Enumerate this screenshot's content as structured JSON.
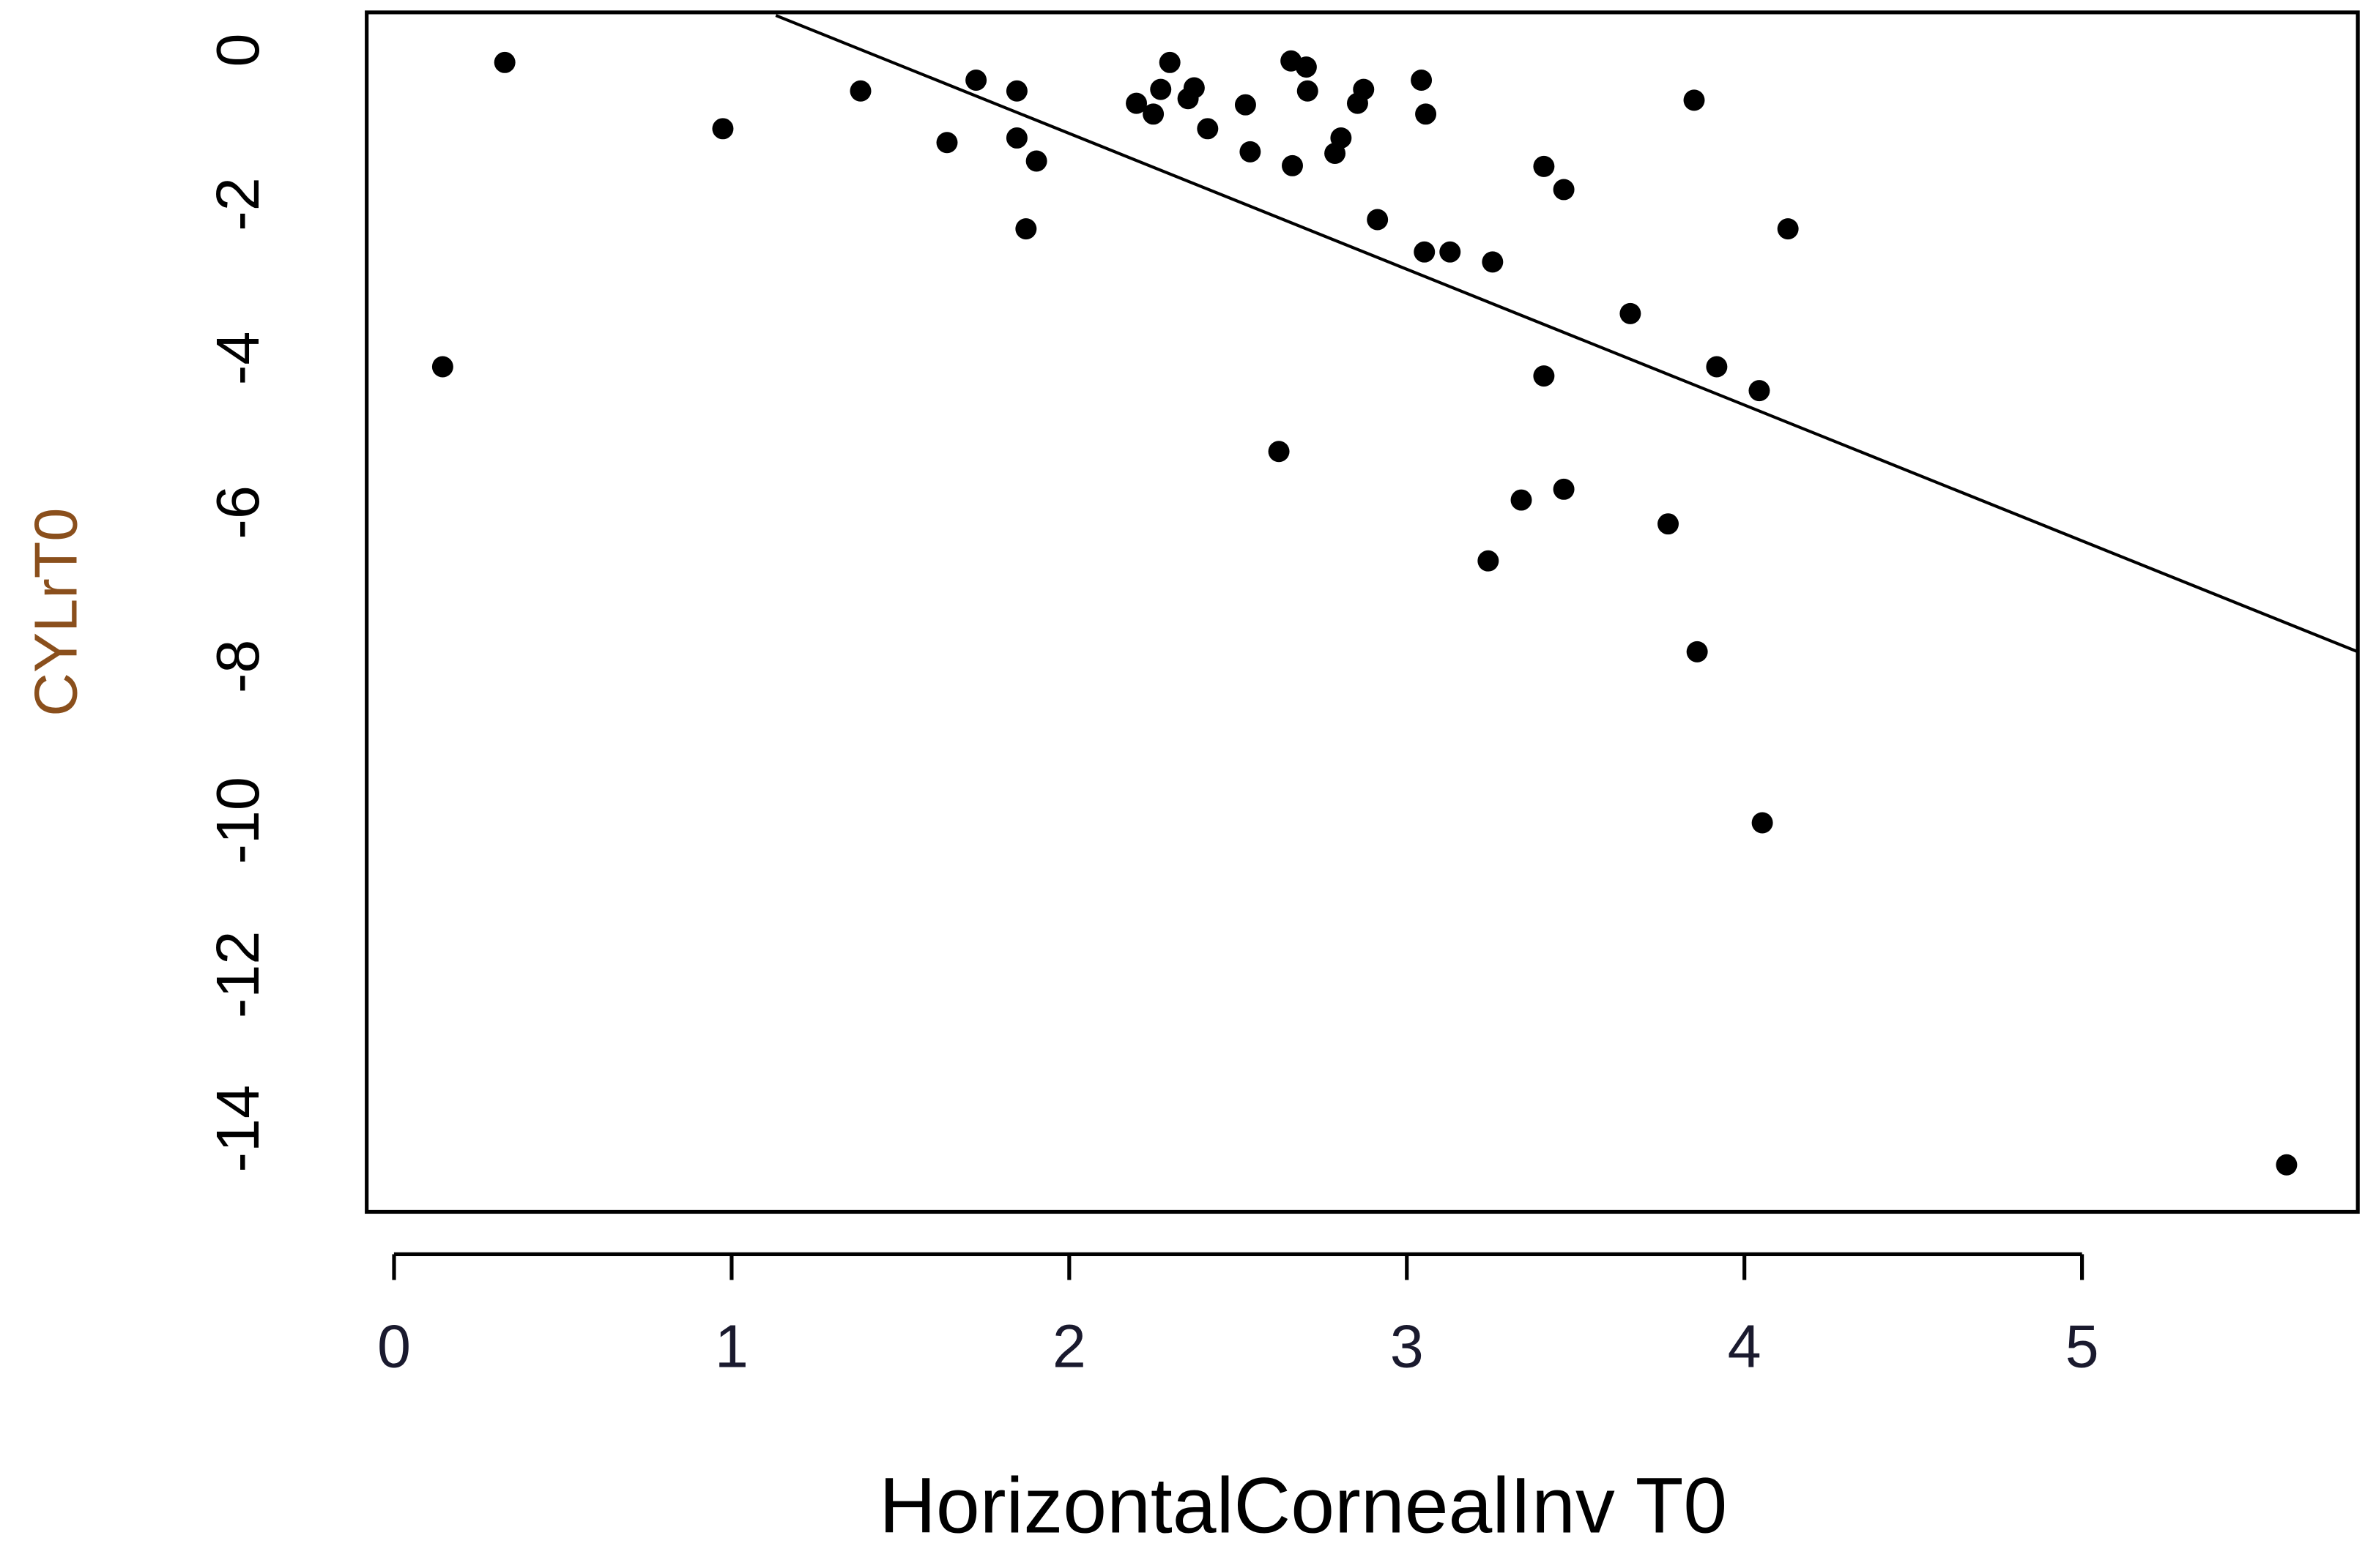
{
  "chart_data": {
    "type": "scatter",
    "x_label": "HorizontalCornealInv T0",
    "y_label": "CYLrT0",
    "color": "#000000",
    "y_label_color": "#8a4f1c",
    "x": [
      0.144,
      0.328,
      0.974,
      1.382,
      1.638,
      1.724,
      1.845,
      1.845,
      1.903,
      1.872,
      2.199,
      2.249,
      2.271,
      2.298,
      2.352,
      2.37,
      2.41,
      2.522,
      2.536,
      2.621,
      2.657,
      2.661,
      2.702,
      2.706,
      2.787,
      2.805,
      2.854,
      2.872,
      2.913,
      3.043,
      3.056,
      3.052,
      3.128,
      3.254,
      3.241,
      3.339,
      3.406,
      3.406,
      3.465,
      3.465,
      3.662,
      3.774,
      3.851,
      3.86,
      3.918,
      4.044,
      4.053,
      4.129,
      5.606
    ],
    "values": [
      -4.11,
      -0.16,
      -1.02,
      -0.53,
      -1.2,
      -0.39,
      -0.53,
      -1.14,
      -1.44,
      -2.32,
      -0.69,
      -0.83,
      -0.51,
      -0.16,
      -0.63,
      -0.49,
      -1.02,
      -0.71,
      -1.32,
      -5.21,
      -0.14,
      -1.5,
      -0.22,
      -0.53,
      -1.34,
      -1.14,
      -0.69,
      -0.51,
      -2.2,
      -0.39,
      -0.83,
      -2.62,
      -2.62,
      -2.75,
      -6.63,
      -5.84,
      -1.51,
      -4.23,
      -1.81,
      -5.7,
      -3.42,
      -6.15,
      -0.65,
      -7.81,
      -4.11,
      -4.42,
      -10.03,
      -2.32,
      -14.47
    ],
    "trend_line": {
      "x": [
        1.131,
        5.817
      ],
      "y": [
        0.45,
        -7.81
      ]
    },
    "xlim": [
      -0.081,
      5.817
    ],
    "ylim": [
      -15.08,
      0.49
    ],
    "xticks": [
      0,
      1,
      2,
      3,
      4,
      5
    ],
    "yticks": [
      0,
      -2,
      -4,
      -6,
      -8,
      -10,
      -12,
      -14
    ]
  }
}
